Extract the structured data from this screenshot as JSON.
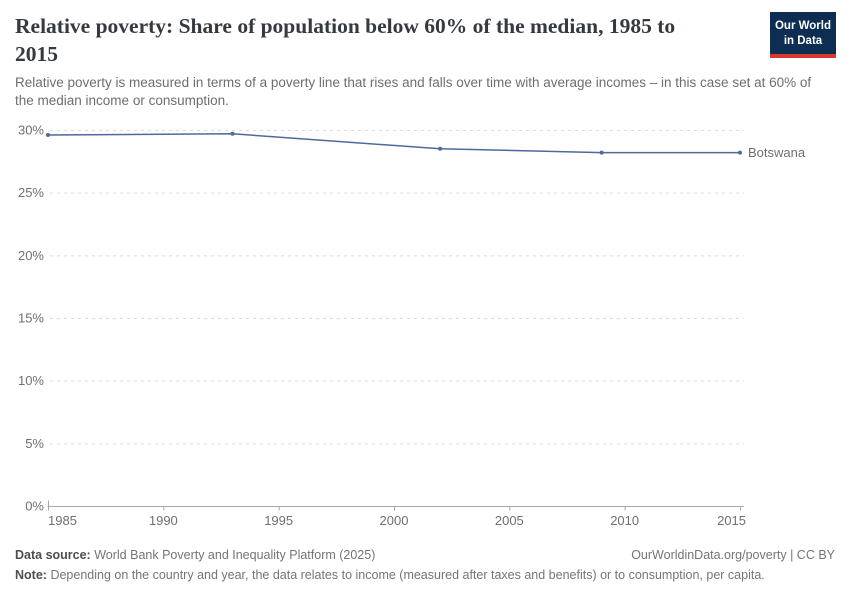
{
  "header": {
    "logo": {
      "line1": "Our World",
      "line2": "in Data"
    }
  },
  "chart_data": {
    "type": "line",
    "title": "Relative poverty: Share of population below 60% of the median, 1985 to 2015",
    "subtitle": "Relative poverty is measured in terms of a poverty line that rises and falls over time with average incomes – in this case set at 60% of the median income or consumption.",
    "series": [
      {
        "name": "Botswana",
        "color": "#4c6a9c",
        "x": [
          1985,
          1993,
          2002,
          2009,
          2015
        ],
        "values": [
          29.6,
          29.7,
          28.5,
          28.2,
          28.2
        ]
      }
    ],
    "xlabel": "",
    "ylabel": "",
    "xlim": [
      1985,
      2015
    ],
    "ylim": [
      0,
      30
    ],
    "xticks": [
      1985,
      1990,
      1995,
      2000,
      2005,
      2010,
      2015
    ],
    "yticks": [
      0,
      5,
      10,
      15,
      20,
      25,
      30
    ],
    "ytick_suffix": "%",
    "grid": "horizontal-dashed",
    "legend_position": "end-of-line-label"
  },
  "footer": {
    "data_source_label": "Data source:",
    "data_source": "World Bank Poverty and Inequality Platform (2025)",
    "link": "OurWorldinData.org/poverty | CC BY",
    "note_label": "Note:",
    "note": "Depending on the country and year, the data relates to income (measured after taxes and benefits) or to consumption, per capita."
  },
  "colors": {
    "line": "#4c6a9c",
    "logo_background": "#0d2d52",
    "logo_stripe": "#d8382e",
    "title_text": "#343a40",
    "subtitle_text": "#6e6e6e",
    "axis_text": "#6f6f6f"
  }
}
